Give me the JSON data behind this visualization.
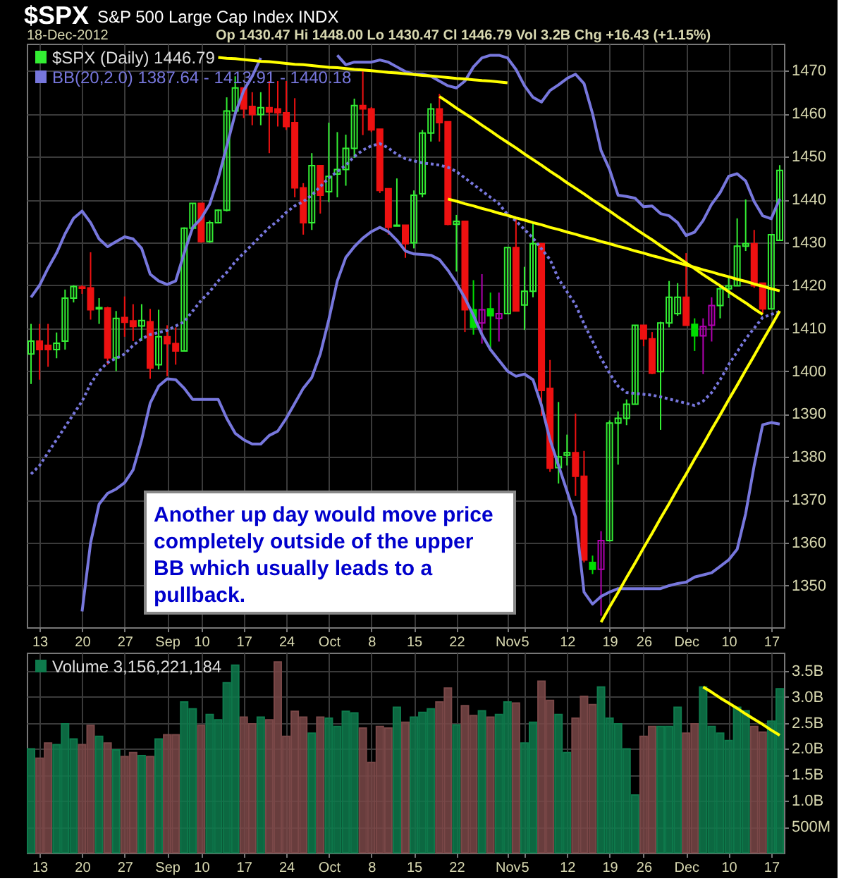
{
  "chart_data": [
    {
      "type": "candlestick",
      "title": "$SPX S&P 500 Large Cap Index INDX",
      "subtitle": "18-Dec-2012 Op 1430.47 Hi 1448.00 Lo 1430.47 Cl 1446.79 Vol 3.2B Chg +16.43 (+1.15%)",
      "categories": [
        null,
        "13",
        null,
        null,
        null,
        null,
        "20",
        null,
        null,
        null,
        null,
        "27",
        null,
        null,
        null,
        null,
        "Sep",
        null,
        null,
        null,
        "10",
        null,
        null,
        null,
        null,
        "17",
        null,
        null,
        null,
        null,
        "24",
        null,
        null,
        null,
        null,
        "Oct",
        null,
        null,
        null,
        null,
        "8",
        null,
        null,
        null,
        null,
        "15",
        null,
        null,
        null,
        null,
        "22",
        null,
        null,
        null,
        null,
        null,
        "Nov",
        null,
        "5",
        null,
        null,
        null,
        null,
        "12",
        null,
        null,
        null,
        null,
        "19",
        null,
        null,
        null,
        "26",
        null,
        null,
        null,
        null,
        "Dec",
        null,
        null,
        null,
        null,
        "10",
        null,
        null,
        null,
        null,
        "17",
        null
      ],
      "ylim": [
        1340.3,
        1476.3
      ],
      "yticks": [
        1350,
        1360,
        1370,
        1380,
        1390,
        1400,
        1410,
        1420,
        1430,
        1440,
        1450,
        1460,
        1470
      ],
      "grid": true,
      "legend": "top left",
      "series": [
        {
          "name": "BB(20,2.0) 1387.64 - 1413.91 - 1440.18",
          "type": "line",
          "color": "#7777dd",
          "values": [
            1417.2,
            1420,
            1424,
            1427.5,
            1432,
            1435.6,
            1437.3,
            1434.6,
            1430.8,
            1429,
            1430.2,
            1431.3,
            1430.8,
            1428.6,
            1422.6,
            1421,
            1420.2,
            1421,
            1427.5,
            1433.5,
            1435.6,
            1438.9,
            1444.9,
            1452.4,
            1460,
            1465.4,
            1468.7,
            1473,
            null,
            null,
            null,
            null,
            null,
            null,
            null,
            null,
            1473.6,
            1471.4,
            1472,
            1472,
            1472,
            1472.5,
            1472,
            1470.9,
            1469.8,
            1469.2,
            1469.2,
            1468.7,
            1467.6,
            1466.5,
            1466,
            1467.6,
            1470.9,
            1473,
            1473.6,
            1473.6,
            1473,
            1470.3,
            1466.5,
            1463.8,
            1462.7,
            1465.4,
            1466.7,
            1468.2,
            1469.2,
            1467,
            1460,
            1451.4,
            1447,
            1441,
            1440.7,
            1440.3,
            1438.3,
            1438.5,
            1436.7,
            1436.2,
            1434.6,
            1431.6,
            1432.4,
            1435.1,
            1438.9,
            1441.6,
            1445.4,
            1446,
            1444.3,
            1439.5,
            1436.2,
            1435.5,
            1440.18
          ]
        },
        {
          "type": "line",
          "color": "#7777dd",
          "line_style": "dotted",
          "values": [
            1376,
            1378,
            1381,
            1384,
            1387,
            1390,
            1393,
            1397,
            1400,
            1402,
            1403,
            1404,
            1406,
            1407.5,
            1408.5,
            1409,
            1409.5,
            1410.5,
            1411.5,
            1414,
            1416.5,
            1418.5,
            1421,
            1423,
            1425.5,
            1427.5,
            1429.5,
            1431.5,
            1433.5,
            1435,
            1437,
            1438.5,
            1439.5,
            1441,
            1443,
            1445,
            1446.5,
            1448,
            1450,
            1451.5,
            1452.5,
            1453,
            1452,
            1450.5,
            1449.5,
            1449,
            1448.5,
            1448.3,
            1448,
            1447.5,
            1446.5,
            1445,
            1443.5,
            1442,
            1440.5,
            1439,
            1436.5,
            1435,
            1433,
            1431,
            1428.5,
            1426,
            1421.5,
            1418.5,
            1415.5,
            1411,
            1407,
            1403,
            1399.5,
            1396.5,
            1395,
            1394.8,
            1394.6,
            1394.4,
            1394,
            1393.5,
            1393,
            1392.5,
            1392,
            1393,
            1395,
            1398,
            1401.5,
            1404.5,
            1407.5,
            1410,
            1412.5,
            1413.2,
            1413.91
          ]
        },
        {
          "type": "line",
          "color": "#7777dd",
          "values": [
            null,
            null,
            null,
            null,
            null,
            null,
            1344,
            1360,
            1369,
            1371.5,
            1372.5,
            1374,
            1377,
            1384,
            1392.5,
            1396.5,
            1398.2,
            1398,
            1396,
            1393.4,
            1393.4,
            1393.4,
            1393.4,
            1389,
            1385.5,
            1384,
            1383,
            1383,
            1385,
            1386,
            1389,
            1392.5,
            1396,
            1398.5,
            1404,
            1412,
            1421,
            1426.5,
            1429,
            1431,
            1432.5,
            1433.5,
            1432.5,
            1430.5,
            1428,
            1427.3,
            1427.2,
            1427,
            1426,
            1423.5,
            1420.5,
            1417,
            1413,
            1408.5,
            1405,
            1402.5,
            1400,
            1398.8,
            1399.3,
            1398,
            1392,
            1384,
            1378,
            1372,
            1366,
            1348.5,
            1345.7,
            1347.5,
            1348.5,
            1349.3,
            1349.3,
            1349.3,
            1349.3,
            1349.3,
            1349.3,
            1350,
            1350.5,
            1350.8,
            1352,
            1352.5,
            1353,
            1354.5,
            1356,
            1358.5,
            1366.8,
            1378,
            1387.5,
            1388,
            1387.64
          ]
        },
        {
          "type": "line",
          "color": "#ffff00",
          "values": [
            null,
            null,
            null,
            null,
            null,
            null,
            null,
            null,
            null,
            null,
            null,
            null,
            null,
            null,
            null,
            null,
            null,
            null,
            null,
            null,
            null,
            null,
            1473.1,
            1472.9,
            1472.8,
            1472.6,
            1472.4,
            1472.2,
            1472.1,
            1471.9,
            1471.7,
            1471.5,
            1471.4,
            1471.2,
            1471.0,
            1470.8,
            1470.7,
            1470.5,
            1470.3,
            1470.2,
            1470.0,
            1469.8,
            1469.6,
            1469.5,
            1469.3,
            1469.1,
            1468.9,
            1468.8,
            1468.6,
            1468.4,
            1468.2,
            1468.1,
            1467.9,
            1467.7,
            1467.6,
            1467.4,
            1467.2,
            null,
            null,
            null,
            null,
            null,
            null,
            null,
            null,
            null,
            null,
            null,
            null,
            null,
            null,
            null,
            null,
            null,
            null,
            null,
            null,
            null,
            null,
            null,
            null,
            null,
            null,
            null,
            null,
            null,
            null,
            null,
            null
          ]
        },
        {
          "type": "line",
          "color": "#ffff00",
          "values": [
            null,
            null,
            null,
            null,
            null,
            null,
            null,
            null,
            null,
            null,
            null,
            null,
            null,
            null,
            null,
            null,
            null,
            null,
            null,
            null,
            null,
            null,
            null,
            null,
            null,
            null,
            null,
            null,
            null,
            null,
            null,
            null,
            null,
            null,
            null,
            null,
            null,
            null,
            null,
            null,
            null,
            null,
            null,
            null,
            null,
            null,
            null,
            null,
            1464.0,
            1462.7,
            1461.3,
            1460.0,
            1458.7,
            1457.3,
            1456.0,
            1454.6,
            1453.3,
            1452.0,
            1450.6,
            1449.3,
            1448.0,
            1446.6,
            1445.3,
            1443.9,
            1442.6,
            1441.3,
            1439.9,
            1438.6,
            1437.3,
            1435.9,
            1434.6,
            1433.2,
            1431.9,
            1430.6,
            1429.2,
            1427.9,
            1426.6,
            1425.2,
            1423.9,
            1422.5,
            1421.2,
            1419.9,
            1418.5,
            1417.2,
            1415.9,
            1414.5,
            1413.2,
            null,
            null
          ]
        },
        {
          "type": "line",
          "color": "#ffff00",
          "values": [
            null,
            null,
            null,
            null,
            null,
            null,
            null,
            null,
            null,
            null,
            null,
            null,
            null,
            null,
            null,
            null,
            null,
            null,
            null,
            null,
            null,
            null,
            null,
            null,
            null,
            null,
            null,
            null,
            null,
            null,
            null,
            null,
            null,
            null,
            null,
            null,
            null,
            null,
            null,
            null,
            null,
            null,
            null,
            null,
            null,
            null,
            null,
            null,
            null,
            1440.1,
            1439.6,
            1439.0,
            1438.5,
            1437.9,
            1437.4,
            1436.8,
            1436.3,
            1435.7,
            1435.2,
            1434.6,
            1434.1,
            1433.5,
            1433.0,
            1432.4,
            1431.9,
            1431.3,
            1430.8,
            1430.2,
            1429.7,
            1429.1,
            1428.6,
            1428.0,
            1427.5,
            1426.9,
            1426.4,
            1425.8,
            1425.3,
            1424.7,
            1424.2,
            1423.6,
            1423.1,
            1422.5,
            1422.0,
            1421.4,
            1420.9,
            1420.3,
            1419.8,
            1419.2,
            1418.7
          ]
        },
        {
          "type": "line",
          "color": "#ffff00",
          "values": [
            null,
            null,
            null,
            null,
            null,
            null,
            null,
            null,
            null,
            null,
            null,
            null,
            null,
            null,
            null,
            null,
            null,
            null,
            null,
            null,
            null,
            null,
            null,
            null,
            null,
            null,
            null,
            null,
            null,
            null,
            null,
            null,
            null,
            null,
            null,
            null,
            null,
            null,
            null,
            null,
            null,
            null,
            null,
            null,
            null,
            null,
            null,
            null,
            null,
            null,
            null,
            null,
            null,
            null,
            null,
            null,
            null,
            null,
            null,
            null,
            null,
            null,
            null,
            null,
            null,
            null,
            null,
            1341.5,
            1345.0,
            1348.4,
            1351.9,
            1355.3,
            1358.8,
            1362.2,
            1365.7,
            1369.1,
            1372.6,
            1376.0,
            1379.5,
            1382.9,
            1386.4,
            1389.8,
            1393.3,
            1396.7,
            1400.2,
            1403.6,
            1407.1,
            1410.5,
            1414.0
          ]
        },
        {
          "name": "$SPX (Daily) 1446.79",
          "color": "#33ee33",
          "colors": [
            "#33ee33",
            "#ee1111",
            "#ee1111",
            "#33ee33",
            "#33ee33",
            "#33ee33",
            "#ee1111",
            "#ee1111",
            "#33ee33",
            "#ee1111",
            "#33ee33",
            "#ee1111",
            "#ee1111",
            "#33ee33",
            "#ee1111",
            "#33ee33",
            "#ee1111",
            "#ee1111",
            "#33ee33",
            "#33ee33",
            "#ee1111",
            "#33ee33",
            "#33ee33",
            "#33ee33",
            "#33ee33",
            "#ee1111",
            "#ee1111",
            "#33ee33",
            "#ee1111",
            "#ee1111",
            "#ee1111",
            "#ee1111",
            "#ee1111",
            "#33ee33",
            "#ee1111",
            "#33ee33",
            "#33ee33",
            "#33ee33",
            "#33ee33",
            "#ee1111",
            "#ee1111",
            "#ee1111",
            "#ee1111",
            "#33ee33",
            "#ee1111",
            "#33ee33",
            "#33ee33",
            "#33ee33",
            "#ee1111",
            "#ee1111",
            "#33ee33",
            "#ee1111",
            "#00dd00",
            "#b000b0",
            "#00dd00",
            "#b000b0",
            "#33ee33",
            "#ee1111",
            "#33ee33",
            "#33ee33",
            "#ee1111",
            "#ee1111",
            "#33ee33",
            "#33ee33",
            "#ee1111",
            "#ee1111",
            "#00dd00",
            "#b000b0",
            "#33ee33",
            "#33ee33",
            "#33ee33",
            "#33ee33",
            "#ee1111",
            "#ee1111",
            "#33ee33",
            "#33ee33",
            "#33ee33",
            "#ee1111",
            "#00dd00",
            "#b000b0",
            "#b000b0",
            "#33ee33",
            "#33ee33",
            "#33ee33",
            "#33ee33",
            "#ee1111",
            "#ee1111",
            "#33ee33",
            "#33ee33"
          ],
          "ohlc": [
            [
              1404,
              1411,
              1397,
              1407
            ],
            [
              1407,
              1411,
              1398,
              1405
            ],
            [
              1406,
              1411,
              1401,
              1405
            ],
            [
              1405,
              1409,
              1403,
              1406.5
            ],
            [
              1407,
              1419,
              1405,
              1417
            ],
            [
              1417,
              1420,
              1416,
              1419.7
            ],
            [
              1419.6,
              1420,
              1418,
              1419.3
            ],
            [
              1419.4,
              1427.7,
              1412,
              1414.3
            ],
            [
              1414.5,
              1417,
              1411,
              1414.8
            ],
            [
              1414.7,
              1415,
              1401.5,
              1403.1
            ],
            [
              1403.1,
              1414,
              1400,
              1412.3
            ],
            [
              1412.5,
              1417.4,
              1408,
              1411.4
            ],
            [
              1411.7,
              1415.6,
              1407,
              1410.4
            ],
            [
              1410.5,
              1415.6,
              1407,
              1411.8
            ],
            [
              1411.5,
              1414.5,
              1398.2,
              1400.7
            ],
            [
              1401.5,
              1414.3,
              1400.4,
              1408
            ],
            [
              1408,
              1410.7,
              1398.8,
              1406.4
            ],
            [
              1406.4,
              1410.2,
              1401.5,
              1404.7
            ],
            [
              1404.7,
              1433.5,
              1404.7,
              1433.3
            ],
            [
              1433.3,
              1439.1,
              1432.9,
              1439.1
            ],
            [
              1439.1,
              1439.1,
              1429.9,
              1430.2
            ],
            [
              1430.2,
              1435.1,
              1429.9,
              1434.6
            ],
            [
              1434.6,
              1437.7,
              1434.4,
              1437.5
            ],
            [
              1437.5,
              1463.8,
              1437.2,
              1460.6
            ],
            [
              1460.6,
              1468.7,
              1460,
              1466
            ],
            [
              1466,
              1466,
              1459,
              1461.1
            ],
            [
              1461.7,
              1465,
              1457.3,
              1459.8
            ],
            [
              1459.8,
              1465,
              1457.3,
              1461.4
            ],
            [
              1461.4,
              1467.6,
              1450.8,
              1460.4
            ],
            [
              1461.1,
              1467.6,
              1457,
              1460.2
            ],
            [
              1460.2,
              1467.6,
              1456.2,
              1457
            ],
            [
              1457.9,
              1463.6,
              1440.5,
              1442.7
            ],
            [
              1442.7,
              1443.8,
              1431.8,
              1434.6
            ],
            [
              1434.6,
              1450.8,
              1432.9,
              1447.9
            ],
            [
              1447.9,
              1447.9,
              1436.7,
              1441
            ],
            [
              1441.8,
              1457.9,
              1439.4,
              1445.4
            ],
            [
              1445.9,
              1455.7,
              1440.5,
              1447
            ],
            [
              1447,
              1455.1,
              1443.2,
              1451.9
            ],
            [
              1451.9,
              1463.5,
              1449.7,
              1461.9
            ],
            [
              1461.9,
              1470.3,
              1455,
              1461.1
            ],
            [
              1461.1,
              1461.5,
              1455.7,
              1456.2
            ],
            [
              1456.4,
              1456.4,
              1441.5,
              1442.1
            ],
            [
              1442.5,
              1442.5,
              1431.8,
              1433.5
            ],
            [
              1433.8,
              1444.9,
              1433.8,
              1434
            ],
            [
              1434,
              1434,
              1426.4,
              1429.7
            ],
            [
              1429.9,
              1442.1,
              1428.6,
              1441
            ],
            [
              1441.3,
              1456.2,
              1440.5,
              1455.5
            ],
            [
              1455.5,
              1462.4,
              1453.5,
              1461.1
            ],
            [
              1461.1,
              1464.6,
              1453.5,
              1457.9
            ],
            [
              1458.1,
              1458.1,
              1434,
              1434.2
            ],
            [
              1434.2,
              1436.4,
              1423.2,
              1434.9
            ],
            [
              1434.9,
              1434.9,
              1409.1,
              1414.3
            ],
            [
              1414.3,
              1421.2,
              1408.5,
              1410.2
            ],
            [
              1411.2,
              1422.6,
              1406.4,
              1414.3
            ],
            [
              1414.5,
              1418.3,
              1404.7,
              1412.9
            ],
            [
              1412.3,
              1418.3,
              1406.9,
              1413.4
            ],
            [
              1413.4,
              1428.8,
              1413.4,
              1428.8
            ],
            [
              1428.8,
              1435.6,
              1414,
              1414
            ],
            [
              1415.4,
              1424.3,
              1409.6,
              1418.6
            ],
            [
              1418.6,
              1434.6,
              1417.2,
              1429.7
            ],
            [
              1429.7,
              1429.7,
              1389.6,
              1395.5
            ],
            [
              1396,
              1402.6,
              1376.5,
              1377.4
            ],
            [
              1377.5,
              1392.8,
              1373.8,
              1380
            ],
            [
              1380.4,
              1385.2,
              1378,
              1381
            ],
            [
              1381,
              1390.1,
              1370.9,
              1375.5
            ],
            [
              1375.5,
              1381.4,
              1355.4,
              1356
            ],
            [
              1355.4,
              1357,
              1352.7,
              1353.8
            ],
            [
              1353.8,
              1362.7,
              1343,
              1360.5
            ],
            [
              1360.5,
              1388.5,
              1360.3,
              1387.9
            ],
            [
              1387.9,
              1390.6,
              1378.2,
              1389
            ],
            [
              1389,
              1393.4,
              1387.4,
              1392.3
            ],
            [
              1392.3,
              1410.7,
              1392.3,
              1410.7
            ],
            [
              1410.7,
              1410.7,
              1405.8,
              1407.5
            ],
            [
              1407.5,
              1409.1,
              1399.3,
              1399.5
            ],
            [
              1399.9,
              1411.5,
              1386.3,
              1411.2
            ],
            [
              1411.2,
              1421,
              1410.2,
              1417.2
            ],
            [
              1413.4,
              1420.5,
              1412.9,
              1417.2
            ],
            [
              1417.2,
              1427.5,
              1410.7,
              1410.7
            ],
            [
              1410.9,
              1412.3,
              1404.7,
              1408.2
            ],
            [
              1408.2,
              1412.3,
              1399.3,
              1410.4
            ],
            [
              1410.7,
              1417.2,
              1406.9,
              1415.3
            ],
            [
              1415.3,
              1419.9,
              1412.3,
              1419.2
            ],
            [
              1419.2,
              1422,
              1417,
              1419.9
            ],
            [
              1419.9,
              1435.6,
              1419.9,
              1429.1
            ],
            [
              1429.1,
              1440,
              1428,
              1429.7
            ],
            [
              1429.7,
              1432.9,
              1419.4,
              1419.9
            ],
            [
              1420.5,
              1420.5,
              1413.4,
              1414.5
            ],
            [
              1414.5,
              1431.8,
              1414.5,
              1431.8
            ],
            [
              1430.47,
              1448,
              1430.47,
              1446.79
            ]
          ]
        }
      ],
      "annotations": [
        "Another up day would move price completely outside of the upper BB which usually leads to a pullback."
      ]
    },
    {
      "type": "bar",
      "categories": [
        null,
        "13",
        null,
        null,
        null,
        null,
        "20",
        null,
        null,
        null,
        null,
        "27",
        null,
        null,
        null,
        null,
        "Sep",
        null,
        null,
        null,
        "10",
        null,
        null,
        null,
        null,
        "17",
        null,
        null,
        null,
        null,
        "24",
        null,
        null,
        null,
        null,
        "Oct",
        null,
        null,
        null,
        null,
        "8",
        null,
        null,
        null,
        null,
        "15",
        null,
        null,
        null,
        null,
        "22",
        null,
        null,
        null,
        null,
        null,
        "Nov",
        null,
        "5",
        null,
        null,
        null,
        null,
        "12",
        null,
        null,
        null,
        null,
        "19",
        null,
        null,
        null,
        "26",
        null,
        null,
        null,
        null,
        "Dec",
        null,
        null,
        null,
        null,
        "10",
        null,
        null,
        null,
        null,
        "17",
        null
      ],
      "ylim": [
        0,
        3850000000
      ],
      "yticks": [
        {
          "value": 500000000,
          "label": "500M"
        },
        {
          "value": 1000000000,
          "label": "1.0B"
        },
        {
          "value": 1500000000,
          "label": "1.5B"
        },
        {
          "value": 2000000000,
          "label": "2.0B"
        },
        {
          "value": 2500000000,
          "label": "2.5B"
        },
        {
          "value": 3000000000,
          "label": "3.0B"
        },
        {
          "value": 3500000000,
          "label": "3.5B"
        }
      ],
      "grid": true,
      "legend": "top left",
      "series": [
        {
          "name": "Volume 3,156,221,184",
          "color": "#0e7a4c",
          "colors": [
            "#0e7a4c",
            "#7a4848",
            "#7a4848",
            "#0e7a4c",
            "#0e7a4c",
            "#0e7a4c",
            "#7a4848",
            "#7a4848",
            "#0e7a4c",
            "#7a4848",
            "#0e7a4c",
            "#7a4848",
            "#7a4848",
            "#0e7a4c",
            "#7a4848",
            "#0e7a4c",
            "#7a4848",
            "#7a4848",
            "#0e7a4c",
            "#0e7a4c",
            "#7a4848",
            "#0e7a4c",
            "#0e7a4c",
            "#0e7a4c",
            "#0e7a4c",
            "#7a4848",
            "#7a4848",
            "#0e7a4c",
            "#7a4848",
            "#7a4848",
            "#7a4848",
            "#7a4848",
            "#7a4848",
            "#0e7a4c",
            "#7a4848",
            "#0e7a4c",
            "#0e7a4c",
            "#0e7a4c",
            "#0e7a4c",
            "#7a4848",
            "#7a4848",
            "#7a4848",
            "#7a4848",
            "#0e7a4c",
            "#7a4848",
            "#0e7a4c",
            "#0e7a4c",
            "#0e7a4c",
            "#7a4848",
            "#7a4848",
            "#0e7a4c",
            "#7a4848",
            "#7a4848",
            "#0e7a4c",
            "#7a4848",
            "#0e7a4c",
            "#0e7a4c",
            "#7a4848",
            "#0e7a4c",
            "#0e7a4c",
            "#7a4848",
            "#7a4848",
            "#0e7a4c",
            "#0e7a4c",
            "#7a4848",
            "#7a4848",
            "#7a4848",
            "#0e7a4c",
            "#0e7a4c",
            "#0e7a4c",
            "#0e7a4c",
            "#0e7a4c",
            "#7a4848",
            "#7a4848",
            "#0e7a4c",
            "#0e7a4c",
            "#0e7a4c",
            "#7a4848",
            "#7a4848",
            "#0e7a4c",
            "#0e7a4c",
            "#0e7a4c",
            "#0e7a4c",
            "#0e7a4c",
            "#0e7a4c",
            "#7a4848",
            "#7a4848",
            "#0e7a4c",
            "#0e7a4c"
          ],
          "values": [
            2000000000,
            1820000000,
            2110000000,
            2080000000,
            2480000000,
            2190000000,
            2080000000,
            2450000000,
            2240000000,
            2110000000,
            1980000000,
            1850000000,
            1930000000,
            1870000000,
            1850000000,
            2190000000,
            2270000000,
            2270000000,
            2900000000,
            2770000000,
            2450000000,
            2660000000,
            2560000000,
            3270000000,
            3610000000,
            2610000000,
            2480000000,
            2610000000,
            2560000000,
            3670000000,
            2240000000,
            2720000000,
            2610000000,
            2300000000,
            2610000000,
            2590000000,
            2430000000,
            2720000000,
            2690000000,
            2400000000,
            1740000000,
            2430000000,
            2400000000,
            2800000000,
            2510000000,
            2610000000,
            2700000000,
            2770000000,
            2900000000,
            3170000000,
            2460000000,
            2830000000,
            2640000000,
            2730000000,
            2610000000,
            2660000000,
            2900000000,
            2880000000,
            2110000000,
            2510000000,
            3300000000,
            2930000000,
            2660000000,
            1930000000,
            2590000000,
            3010000000,
            2850000000,
            3190000000,
            2590000000,
            2480000000,
            2000000000,
            1110000000,
            2240000000,
            2430000000,
            2430000000,
            2430000000,
            2800000000,
            2300000000,
            2480000000,
            3190000000,
            2430000000,
            2300000000,
            2160000000,
            2800000000,
            2730000000,
            2430000000,
            2320000000,
            2530000000,
            3156221184
          ]
        },
        {
          "type": "line",
          "color": "#ffff00",
          "values": [
            null,
            null,
            null,
            null,
            null,
            null,
            null,
            null,
            null,
            null,
            null,
            null,
            null,
            null,
            null,
            null,
            null,
            null,
            null,
            null,
            null,
            null,
            null,
            null,
            null,
            null,
            null,
            null,
            null,
            null,
            null,
            null,
            null,
            null,
            null,
            null,
            null,
            null,
            null,
            null,
            null,
            null,
            null,
            null,
            null,
            null,
            null,
            null,
            null,
            null,
            null,
            null,
            null,
            null,
            null,
            null,
            null,
            null,
            null,
            null,
            null,
            null,
            null,
            null,
            null,
            null,
            null,
            null,
            null,
            null,
            null,
            null,
            null,
            null,
            null,
            null,
            null,
            null,
            null,
            3190000000,
            3090000000,
            2980000000,
            2880000000,
            2780000000,
            2670000000,
            2570000000,
            2470000000,
            2360000000,
            2260000000
          ]
        }
      ]
    }
  ]
}
